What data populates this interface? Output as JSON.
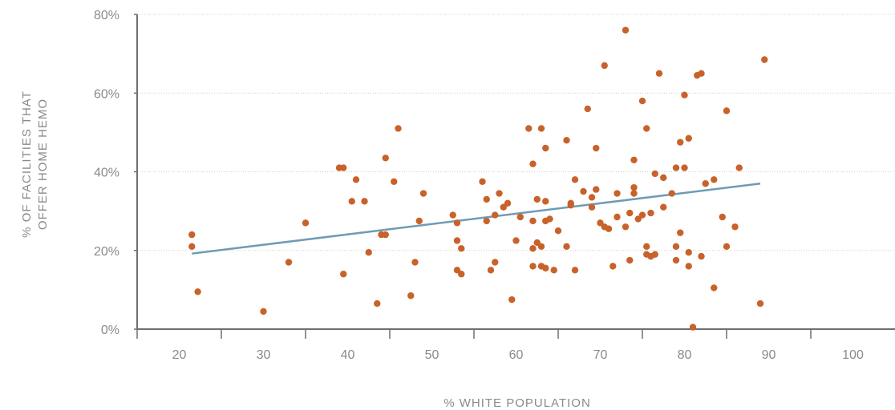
{
  "chart_data": {
    "type": "scatter",
    "xlabel": "% WHITE POPULATION",
    "ylabel_lines": [
      "% OF FACILITIES THAT",
      "OFFER HOME HEMO"
    ],
    "xlim": [
      15,
      105
    ],
    "ylim": [
      0,
      80
    ],
    "x_ticks": [
      20,
      30,
      40,
      50,
      60,
      70,
      80,
      90,
      100
    ],
    "x_tick_labels": [
      "20",
      "30",
      "40",
      "50",
      "60",
      "70",
      "80",
      "90",
      "100"
    ],
    "y_ticks": [
      0,
      20,
      40,
      60,
      80
    ],
    "y_tick_labels": [
      "0%",
      "20%",
      "40%",
      "60%",
      "80%"
    ],
    "grid": "horizontal-dotted",
    "colors": {
      "points": "#c8622a",
      "trendline": "#6f9bb5",
      "axis": "#6f6f6f",
      "text": "#8a8a8a"
    },
    "trendline": {
      "x": [
        21.5,
        89
      ],
      "y": [
        19.2,
        37
      ]
    },
    "series": [
      {
        "points": [
          [
            21.5,
            24
          ],
          [
            21.5,
            21
          ],
          [
            22.2,
            9.5
          ],
          [
            30,
            4.5
          ],
          [
            33,
            17
          ],
          [
            35,
            27
          ],
          [
            39,
            41
          ],
          [
            39.5,
            41
          ],
          [
            39.5,
            14
          ],
          [
            40.5,
            32.5
          ],
          [
            41,
            38
          ],
          [
            42,
            32.5
          ],
          [
            42.5,
            19.5
          ],
          [
            43.5,
            6.5
          ],
          [
            44,
            24
          ],
          [
            44.5,
            24
          ],
          [
            44.5,
            43.5
          ],
          [
            45.5,
            37.5
          ],
          [
            46,
            51
          ],
          [
            47.5,
            8.5
          ],
          [
            48,
            17
          ],
          [
            48.5,
            27.5
          ],
          [
            49,
            34.5
          ],
          [
            52.5,
            29
          ],
          [
            53,
            22.5
          ],
          [
            53,
            27
          ],
          [
            53,
            15
          ],
          [
            53.5,
            14
          ],
          [
            53.5,
            20.5
          ],
          [
            56,
            37.5
          ],
          [
            56.5,
            27.5
          ],
          [
            56.5,
            33
          ],
          [
            57,
            15
          ],
          [
            57.5,
            29
          ],
          [
            57.5,
            17
          ],
          [
            58,
            34.5
          ],
          [
            58.5,
            31
          ],
          [
            59,
            32
          ],
          [
            59.5,
            7.5
          ],
          [
            60,
            22.5
          ],
          [
            60.5,
            28.5
          ],
          [
            61.5,
            51
          ],
          [
            62,
            42
          ],
          [
            62,
            27.5
          ],
          [
            62,
            20.5
          ],
          [
            62,
            16
          ],
          [
            62.5,
            33
          ],
          [
            62.5,
            22
          ],
          [
            63,
            16
          ],
          [
            63,
            51
          ],
          [
            63,
            21
          ],
          [
            63.5,
            15.5
          ],
          [
            63.5,
            46
          ],
          [
            63.5,
            32.5
          ],
          [
            63.5,
            27.5
          ],
          [
            64,
            28
          ],
          [
            64.5,
            15
          ],
          [
            65,
            25
          ],
          [
            66,
            48
          ],
          [
            66,
            21
          ],
          [
            66.5,
            32
          ],
          [
            66.5,
            31.5
          ],
          [
            67,
            38
          ],
          [
            67,
            15
          ],
          [
            68,
            35
          ],
          [
            68.5,
            56
          ],
          [
            69,
            33.5
          ],
          [
            69,
            31
          ],
          [
            69.5,
            46
          ],
          [
            69.5,
            35.5
          ],
          [
            70,
            27
          ],
          [
            70.5,
            67
          ],
          [
            70.5,
            26
          ],
          [
            71,
            25.5
          ],
          [
            71.5,
            16
          ],
          [
            72,
            34.5
          ],
          [
            72,
            28.5
          ],
          [
            73,
            76
          ],
          [
            73,
            26
          ],
          [
            73.5,
            17.5
          ],
          [
            73.5,
            29.5
          ],
          [
            74,
            43
          ],
          [
            74,
            36
          ],
          [
            74,
            34.5
          ],
          [
            74.5,
            28
          ],
          [
            75,
            58
          ],
          [
            75,
            29
          ],
          [
            75.5,
            51
          ],
          [
            75.5,
            19
          ],
          [
            75.5,
            21
          ],
          [
            76,
            18.5
          ],
          [
            76,
            29.5
          ],
          [
            76.5,
            39.5
          ],
          [
            76.5,
            19
          ],
          [
            77,
            65
          ],
          [
            77.5,
            38.5
          ],
          [
            77.5,
            31
          ],
          [
            78.5,
            34.5
          ],
          [
            79,
            41
          ],
          [
            79,
            21
          ],
          [
            79,
            17.5
          ],
          [
            79.5,
            24.5
          ],
          [
            79.5,
            47.5
          ],
          [
            80,
            59.5
          ],
          [
            80,
            41
          ],
          [
            80.5,
            48.5
          ],
          [
            80.5,
            19.5
          ],
          [
            80.5,
            16
          ],
          [
            81,
            0.5
          ],
          [
            81.5,
            64.5
          ],
          [
            82,
            65
          ],
          [
            82,
            18.5
          ],
          [
            82.5,
            37
          ],
          [
            83.5,
            38
          ],
          [
            83.5,
            10.5
          ],
          [
            84.5,
            28.5
          ],
          [
            85,
            55.5
          ],
          [
            85,
            21
          ],
          [
            86,
            26
          ],
          [
            86.5,
            41
          ],
          [
            89,
            6.5
          ],
          [
            89.5,
            68.5
          ]
        ]
      }
    ]
  }
}
